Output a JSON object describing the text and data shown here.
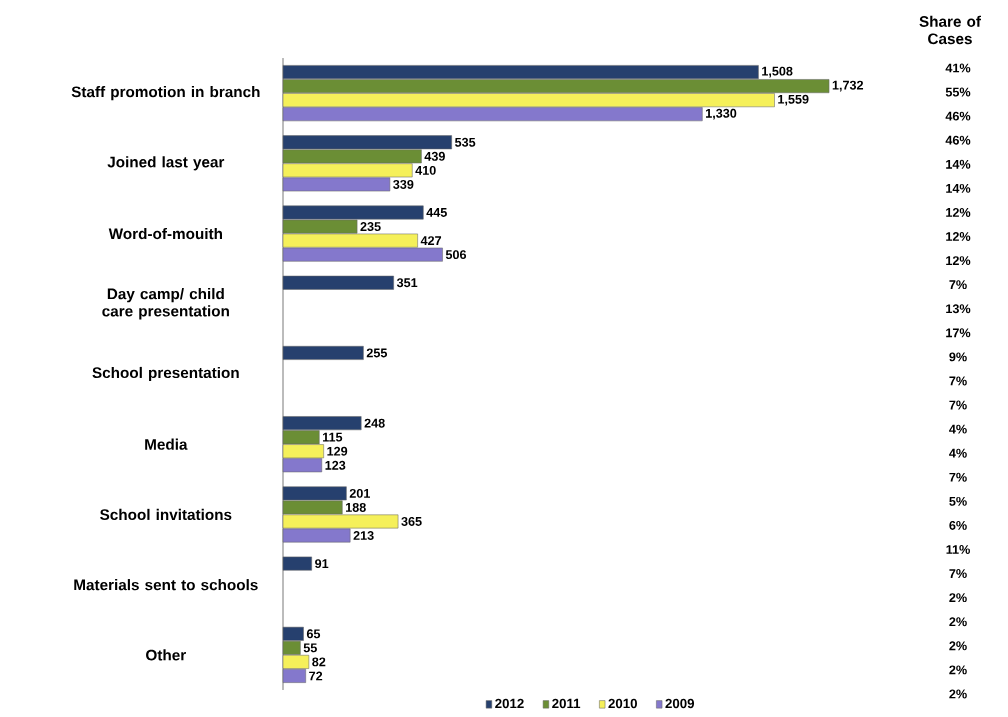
{
  "chart_data": {
    "type": "bar",
    "orientation": "horizontal",
    "data_labels": true,
    "legend": "bottom",
    "tick_labels": "y",
    "categories": [
      "Staff promotion in branch",
      "Joined last year",
      "Word-of-mouith",
      "Day camp/ child care presentation",
      "School presentation",
      "Media",
      "School invitations",
      "Materials sent to schools",
      "Other"
    ],
    "series": [
      {
        "name": "2012",
        "color": "#26406e",
        "values": [
          1508,
          535,
          445,
          351,
          255,
          248,
          201,
          91,
          65
        ],
        "value_labels": [
          "1,508",
          "535",
          "445",
          "351",
          "255",
          "248",
          "201",
          "91",
          "65"
        ]
      },
      {
        "name": "2011",
        "color": "#6b8e35",
        "values": [
          1732,
          439,
          235,
          null,
          null,
          115,
          188,
          null,
          55
        ],
        "value_labels": [
          "1,732",
          "439",
          "235",
          null,
          null,
          "115",
          "188",
          null,
          "55"
        ]
      },
      {
        "name": "2010",
        "color": "#f5f05a",
        "values": [
          1559,
          410,
          427,
          null,
          null,
          129,
          365,
          null,
          82
        ],
        "value_labels": [
          "1,559",
          "410",
          "427",
          null,
          null,
          "129",
          "365",
          null,
          "82"
        ]
      },
      {
        "name": "2009",
        "color": "#8478cc",
        "values": [
          1330,
          339,
          506,
          null,
          null,
          123,
          213,
          null,
          72
        ],
        "value_labels": [
          "1,330",
          "339",
          "506",
          null,
          null,
          "123",
          "213",
          null,
          "72"
        ]
      }
    ],
    "annotations": [
      "Share of Cases",
      "41%",
      "55%",
      "46%",
      "46%",
      "14%",
      "14%",
      "12%",
      "12%",
      "12%",
      "7%",
      "13%",
      "17%",
      "9%",
      "7%",
      "7%",
      "4%",
      "4%",
      "7%",
      "5%",
      "6%",
      "11%",
      "7%",
      "2%",
      "2%",
      "2%",
      "2%",
      "2%"
    ]
  }
}
